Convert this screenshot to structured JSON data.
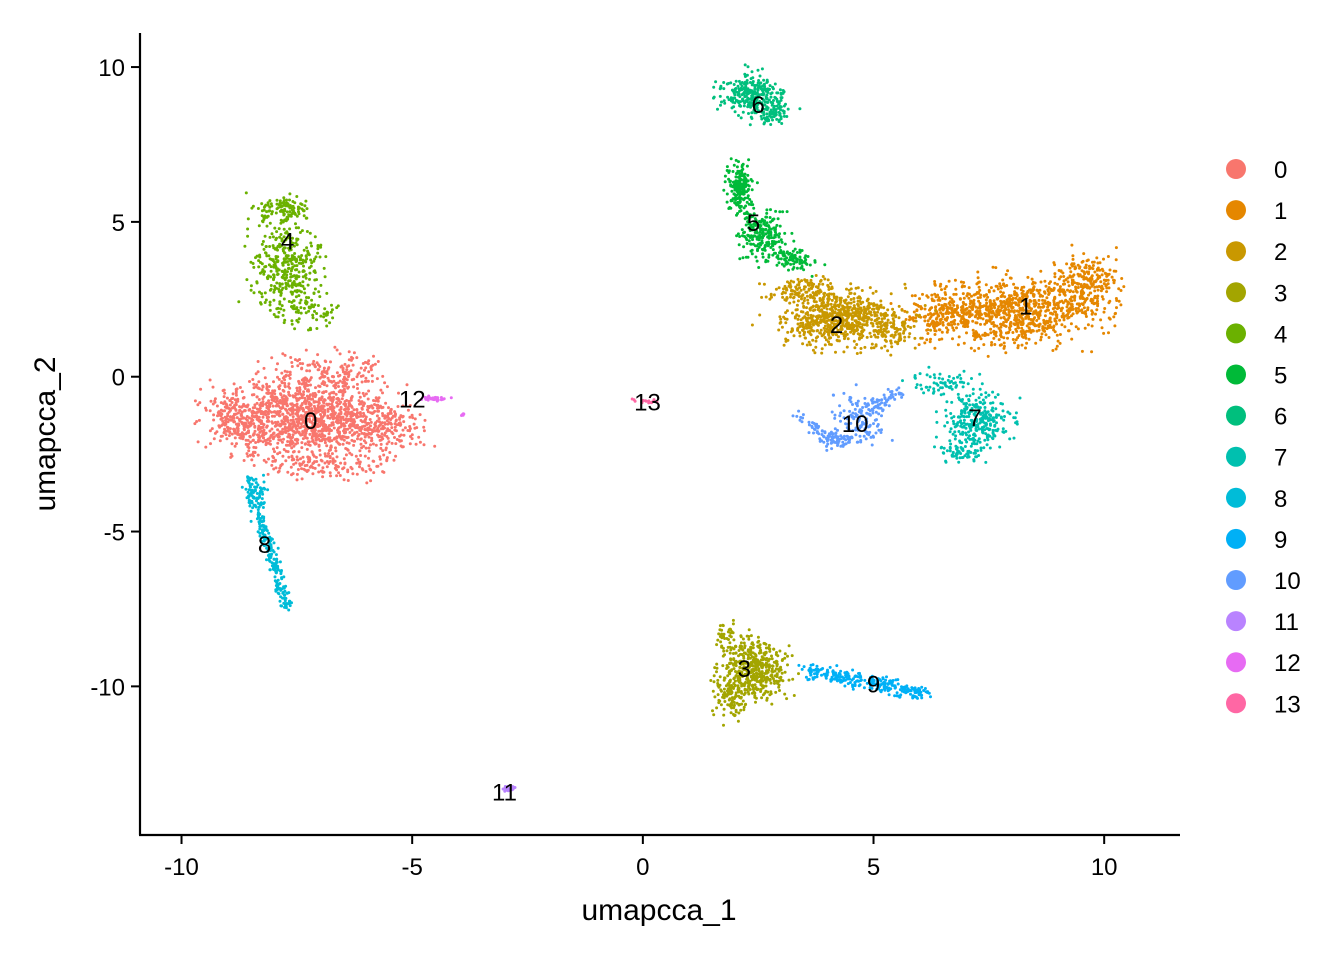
{
  "chart_data": {
    "type": "scatter",
    "title": "",
    "xlabel": "umapcca_1",
    "ylabel": "umapcca_2",
    "xlim": [
      -10.9,
      11.6
    ],
    "ylim": [
      -14.8,
      11.1
    ],
    "xticks": [
      -10,
      -5,
      0,
      5,
      10
    ],
    "xtick_labels": [
      "-10",
      "-5",
      "0",
      "5",
      "10"
    ],
    "yticks": [
      10,
      5,
      0,
      -5,
      -10
    ],
    "ytick_labels": [
      "10",
      "5",
      "0",
      "-5",
      "-10"
    ],
    "grid": false,
    "legend_position": "right",
    "clusters": [
      {
        "name": "0",
        "color": "#F8766D",
        "label_pos": [
          -7.2,
          -1.4
        ]
      },
      {
        "name": "1",
        "color": "#E58700",
        "label_pos": [
          8.3,
          2.3
        ]
      },
      {
        "name": "2",
        "color": "#C99800",
        "label_pos": [
          4.2,
          1.7
        ]
      },
      {
        "name": "3",
        "color": "#A3A500",
        "label_pos": [
          2.2,
          -9.4
        ]
      },
      {
        "name": "4",
        "color": "#6BB100",
        "label_pos": [
          -7.7,
          4.4
        ]
      },
      {
        "name": "5",
        "color": "#00BA38",
        "label_pos": [
          2.4,
          5.0
        ]
      },
      {
        "name": "6",
        "color": "#00BF7D",
        "label_pos": [
          2.5,
          8.8
        ]
      },
      {
        "name": "7",
        "color": "#00C0AF",
        "label_pos": [
          7.2,
          -1.3
        ]
      },
      {
        "name": "8",
        "color": "#00BCD8",
        "label_pos": [
          -8.2,
          -5.4
        ]
      },
      {
        "name": "9",
        "color": "#00B0F6",
        "label_pos": [
          5.0,
          -9.9
        ]
      },
      {
        "name": "10",
        "color": "#619CFF",
        "label_pos": [
          4.6,
          -1.5
        ]
      },
      {
        "name": "11",
        "color": "#B983FF",
        "label_pos": [
          -3.0,
          -13.4
        ]
      },
      {
        "name": "12",
        "color": "#E76BF3",
        "label_pos": [
          -5.0,
          -0.7
        ]
      },
      {
        "name": "13",
        "color": "#FF67A4",
        "label_pos": [
          0.1,
          -0.8
        ]
      }
    ]
  }
}
